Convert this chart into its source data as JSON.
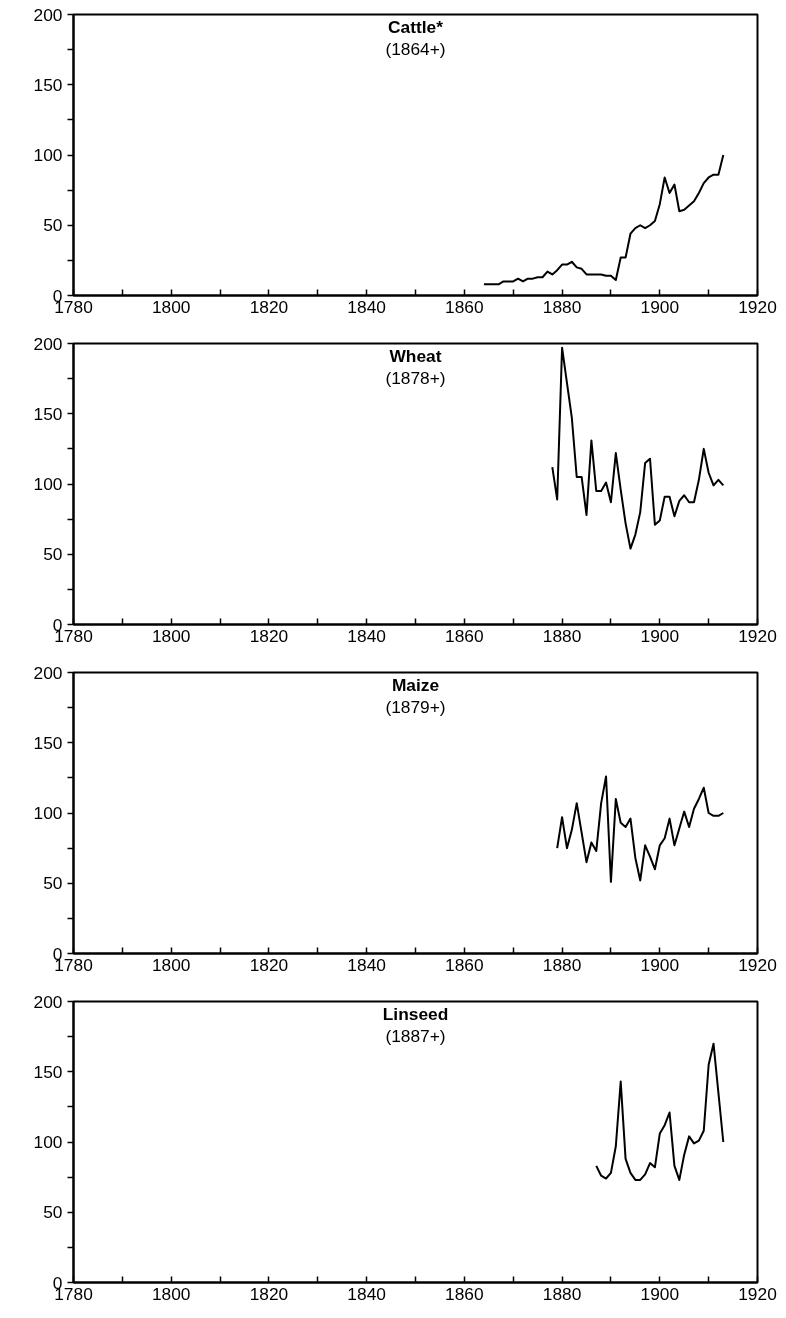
{
  "chart_data": [
    {
      "type": "line",
      "title": "Cattle*",
      "subtitle": "(1864+)",
      "x": [
        1864,
        1865,
        1866,
        1867,
        1868,
        1869,
        1870,
        1871,
        1872,
        1873,
        1874,
        1875,
        1876,
        1877,
        1878,
        1879,
        1880,
        1881,
        1882,
        1883,
        1884,
        1885,
        1886,
        1887,
        1888,
        1889,
        1890,
        1891,
        1892,
        1893,
        1894,
        1895,
        1896,
        1897,
        1898,
        1899,
        1900,
        1901,
        1902,
        1903,
        1904,
        1905,
        1906,
        1907,
        1908,
        1909,
        1910,
        1911,
        1912,
        1913
      ],
      "series": [
        {
          "color": "#000000",
          "values": [
            8,
            8,
            8,
            8,
            10,
            10,
            10,
            12,
            10,
            12,
            12,
            13,
            13,
            17,
            15,
            18,
            22,
            22,
            24,
            20,
            19,
            15,
            15,
            15,
            15,
            14,
            14,
            11,
            27,
            27,
            44,
            48,
            50,
            48,
            50,
            53,
            65,
            84,
            73,
            79,
            60,
            61,
            64,
            67,
            73,
            80,
            84,
            86,
            86,
            100
          ]
        }
      ],
      "xlim": [
        1780,
        1920
      ],
      "ylim": [
        0,
        200
      ],
      "xticks": [
        1780,
        {
          "value": 1790,
          "label": null
        },
        1800,
        {
          "value": 1810,
          "label": null
        },
        1820,
        {
          "value": 1830,
          "label": null
        },
        1840,
        {
          "value": 1850,
          "label": null
        },
        1860,
        {
          "value": 1870,
          "label": null
        },
        1880,
        {
          "value": 1890,
          "label": null
        },
        1900,
        {
          "value": 1910,
          "label": null
        },
        1920
      ],
      "yticks": [
        0,
        {
          "value": 25,
          "label": null
        },
        50,
        {
          "value": 75,
          "label": null
        },
        100,
        {
          "value": 125,
          "label": null
        },
        150,
        {
          "value": 175,
          "label": null
        },
        200
      ],
      "grid": false,
      "marker": "none",
      "line_style": "solid"
    },
    {
      "type": "line",
      "title": "Wheat",
      "subtitle": "(1878+)",
      "x": [
        1878,
        1879,
        1880,
        1881,
        1882,
        1883,
        1884,
        1885,
        1886,
        1887,
        1888,
        1889,
        1890,
        1891,
        1892,
        1893,
        1894,
        1895,
        1896,
        1897,
        1898,
        1899,
        1900,
        1901,
        1902,
        1903,
        1904,
        1905,
        1906,
        1907,
        1908,
        1909,
        1910,
        1911,
        1912,
        1913
      ],
      "series": [
        {
          "color": "#000000",
          "values": [
            112,
            89,
            197,
            172,
            147,
            105,
            105,
            78,
            131,
            95,
            95,
            101,
            87,
            122,
            96,
            72,
            54,
            64,
            80,
            115,
            118,
            71,
            74,
            91,
            91,
            77,
            88,
            92,
            87,
            87,
            103,
            125,
            108,
            99,
            103,
            99
          ]
        }
      ],
      "xlim": [
        1780,
        1920
      ],
      "ylim": [
        0,
        200
      ],
      "xticks": [
        1780,
        {
          "value": 1790,
          "label": null
        },
        1800,
        {
          "value": 1810,
          "label": null
        },
        1820,
        {
          "value": 1830,
          "label": null
        },
        1840,
        {
          "value": 1850,
          "label": null
        },
        1860,
        {
          "value": 1870,
          "label": null
        },
        1880,
        {
          "value": 1890,
          "label": null
        },
        1900,
        {
          "value": 1910,
          "label": null
        },
        1920
      ],
      "yticks": [
        0,
        {
          "value": 25,
          "label": null
        },
        50,
        {
          "value": 75,
          "label": null
        },
        100,
        {
          "value": 125,
          "label": null
        },
        150,
        {
          "value": 175,
          "label": null
        },
        200
      ],
      "grid": false,
      "marker": "none",
      "line_style": "solid"
    },
    {
      "type": "line",
      "title": "Maize",
      "subtitle": "(1879+)",
      "x": [
        1879,
        1880,
        1881,
        1882,
        1883,
        1884,
        1885,
        1886,
        1887,
        1888,
        1889,
        1890,
        1891,
        1892,
        1893,
        1894,
        1895,
        1896,
        1897,
        1898,
        1899,
        1900,
        1901,
        1902,
        1903,
        1904,
        1905,
        1906,
        1907,
        1908,
        1909,
        1910,
        1911,
        1912,
        1913
      ],
      "series": [
        {
          "color": "#000000",
          "values": [
            75,
            97,
            75,
            88,
            107,
            86,
            65,
            79,
            73,
            107,
            126,
            51,
            110,
            93,
            90,
            96,
            68,
            52,
            77,
            69,
            60,
            77,
            82,
            96,
            77,
            89,
            101,
            90,
            103,
            110,
            118,
            100,
            98,
            98,
            100
          ]
        }
      ],
      "xlim": [
        1780,
        1920
      ],
      "ylim": [
        0,
        200
      ],
      "xticks": [
        1780,
        {
          "value": 1790,
          "label": null
        },
        1800,
        {
          "value": 1810,
          "label": null
        },
        1820,
        {
          "value": 1830,
          "label": null
        },
        1840,
        {
          "value": 1850,
          "label": null
        },
        1860,
        {
          "value": 1870,
          "label": null
        },
        1880,
        {
          "value": 1890,
          "label": null
        },
        1900,
        {
          "value": 1910,
          "label": null
        },
        1920
      ],
      "yticks": [
        0,
        {
          "value": 25,
          "label": null
        },
        50,
        {
          "value": 75,
          "label": null
        },
        100,
        {
          "value": 125,
          "label": null
        },
        150,
        {
          "value": 175,
          "label": null
        },
        200
      ],
      "grid": false,
      "marker": "none",
      "line_style": "solid"
    },
    {
      "type": "line",
      "title": "Linseed",
      "subtitle": "(1887+)",
      "x": [
        1887,
        1888,
        1889,
        1890,
        1891,
        1892,
        1893,
        1894,
        1895,
        1896,
        1897,
        1898,
        1899,
        1900,
        1901,
        1902,
        1903,
        1904,
        1905,
        1906,
        1907,
        1908,
        1909,
        1910,
        1911,
        1912,
        1913
      ],
      "series": [
        {
          "color": "#000000",
          "values": [
            83,
            76,
            74,
            78,
            97,
            143,
            88,
            78,
            73,
            73,
            77,
            85,
            82,
            106,
            112,
            121,
            83,
            73,
            91,
            104,
            99,
            101,
            108,
            155,
            170,
            135,
            100
          ]
        }
      ],
      "xlim": [
        1780,
        1920
      ],
      "ylim": [
        0,
        200
      ],
      "xticks": [
        1780,
        {
          "value": 1790,
          "label": null
        },
        1800,
        {
          "value": 1810,
          "label": null
        },
        1820,
        {
          "value": 1830,
          "label": null
        },
        1840,
        {
          "value": 1850,
          "label": null
        },
        1860,
        {
          "value": 1870,
          "label": null
        },
        1880,
        {
          "value": 1890,
          "label": null
        },
        1900,
        {
          "value": 1910,
          "label": null
        },
        1920
      ],
      "yticks": [
        0,
        {
          "value": 25,
          "label": null
        },
        50,
        {
          "value": 75,
          "label": null
        },
        100,
        {
          "value": 125,
          "label": null
        },
        150,
        {
          "value": 175,
          "label": null
        },
        200
      ],
      "grid": false,
      "marker": "none",
      "line_style": "solid"
    }
  ]
}
